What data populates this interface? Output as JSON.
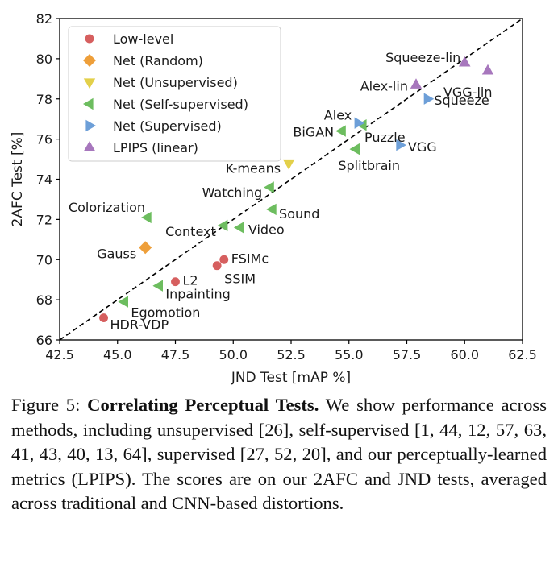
{
  "chart_data": {
    "type": "scatter",
    "xlabel": "JND Test [mAP %]",
    "ylabel": "2AFC Test [%]",
    "xlim": [
      42.5,
      62.5
    ],
    "ylim": [
      66,
      82
    ],
    "xticks": [
      "42.5",
      "45.0",
      "47.5",
      "50.0",
      "52.5",
      "55.0",
      "57.5",
      "60.0",
      "62.5"
    ],
    "yticks": [
      "66",
      "68",
      "70",
      "72",
      "74",
      "76",
      "78",
      "80",
      "82"
    ],
    "grid": false,
    "legend_position": "top-left",
    "reference_line": {
      "style": "dashed",
      "color": "#000000",
      "from": [
        42.5,
        66.0
      ],
      "to": [
        62.5,
        82.0
      ]
    },
    "series": [
      {
        "name": "Low-level",
        "marker": "circle",
        "color": "#d65f5f",
        "points": [
          {
            "label": "HDR-VDP",
            "x": 44.4,
            "y": 67.1
          },
          {
            "label": "L2",
            "x": 47.5,
            "y": 68.9
          },
          {
            "label": "SSIM",
            "x": 49.3,
            "y": 69.7
          },
          {
            "label": "FSIMc",
            "x": 49.6,
            "y": 70.0
          }
        ]
      },
      {
        "name": "Net (Random)",
        "marker": "diamond",
        "color": "#ee9f3a",
        "points": [
          {
            "label": "Gauss",
            "x": 46.2,
            "y": 70.6
          }
        ]
      },
      {
        "name": "Net (Unsupervised)",
        "marker": "triangle-down",
        "color": "#e3d04a",
        "points": [
          {
            "label": "K-means",
            "x": 52.4,
            "y": 74.8
          }
        ]
      },
      {
        "name": "Net (Self-supervised)",
        "marker": "triangle-left",
        "color": "#6dbd5f",
        "points": [
          {
            "label": "Egomotion",
            "x": 45.3,
            "y": 67.9
          },
          {
            "label": "Inpainting",
            "x": 46.8,
            "y": 68.7
          },
          {
            "label": "Colorization",
            "x": 46.3,
            "y": 72.1
          },
          {
            "label": "Context",
            "x": 49.6,
            "y": 71.7
          },
          {
            "label": "Video",
            "x": 50.3,
            "y": 71.6
          },
          {
            "label": "Sound",
            "x": 51.7,
            "y": 72.5
          },
          {
            "label": "Watching",
            "x": 51.6,
            "y": 73.6
          },
          {
            "label": "BiGAN",
            "x": 54.7,
            "y": 76.4
          },
          {
            "label": "Puzzle",
            "x": 55.6,
            "y": 76.7
          },
          {
            "label": "Splitbrain",
            "x": 55.3,
            "y": 75.5
          }
        ]
      },
      {
        "name": "Net (Supervised)",
        "marker": "triangle-right",
        "color": "#6d9fd8",
        "points": [
          {
            "label": "Alex",
            "x": 55.4,
            "y": 76.8
          },
          {
            "label": "VGG",
            "x": 57.2,
            "y": 75.7
          },
          {
            "label": "Squeeze",
            "x": 58.4,
            "y": 78.0
          }
        ]
      },
      {
        "name": "LPIPS (linear)",
        "marker": "triangle-up",
        "color": "#a777bd",
        "points": [
          {
            "label": "Alex-lin",
            "x": 57.9,
            "y": 78.7
          },
          {
            "label": "Squeeze-lin",
            "x": 60.0,
            "y": 79.8
          },
          {
            "label": "VGG-lin",
            "x": 61.0,
            "y": 79.4
          }
        ]
      }
    ]
  },
  "caption": {
    "label": "Figure 5:",
    "title": "Correlating Perceptual Tests.",
    "text": "We show performance across methods, including unsupervised [26], self-supervised [1, 44, 12, 57, 63, 41, 43, 40, 13, 64], supervised [27, 52, 20], and our perceptually-learned metrics (LPIPS). The scores are on our 2AFC and JND tests, averaged across traditional and CNN-based distortions."
  }
}
